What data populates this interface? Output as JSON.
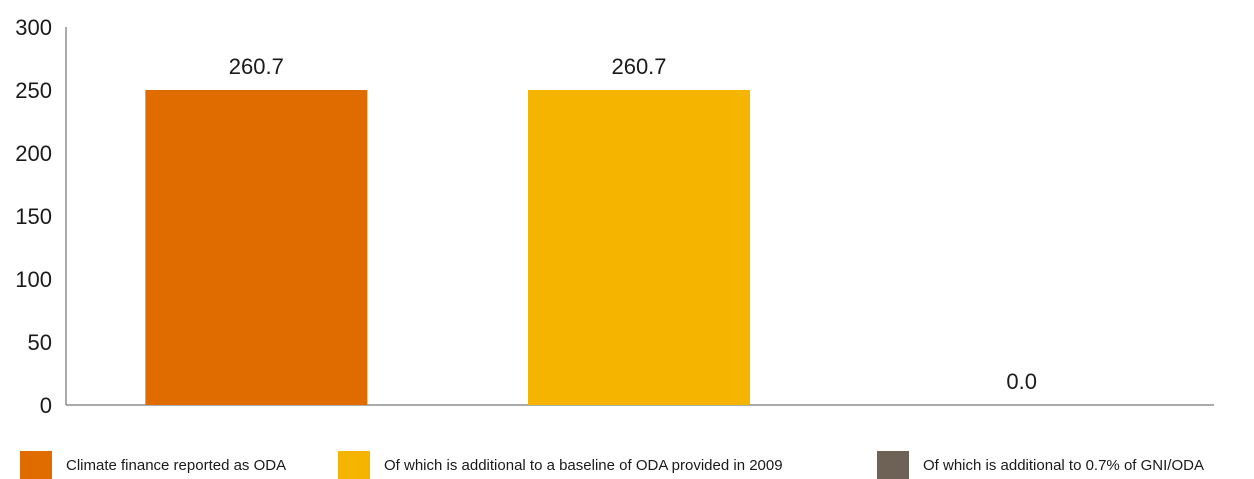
{
  "chart_data": {
    "type": "bar",
    "categories": [
      "Climate finance reported as ODA",
      "Of which is additional to a baseline of ODA provided in 2009",
      "Of which is additional to 0.7% of GNI/ODA"
    ],
    "values": [
      260.7,
      260.7,
      0.0
    ],
    "value_labels": [
      "260.7",
      "260.7",
      "0.0"
    ],
    "colors": [
      "#e06c00",
      "#f4b400",
      "#6e6155"
    ],
    "ylim": [
      0,
      300
    ],
    "yticks": [
      "0",
      "50",
      "100",
      "150",
      "200",
      "250",
      "300"
    ],
    "ytick_values": [
      0,
      50,
      100,
      150,
      200,
      250,
      300
    ],
    "grid": false,
    "legend_position": "bottom"
  }
}
